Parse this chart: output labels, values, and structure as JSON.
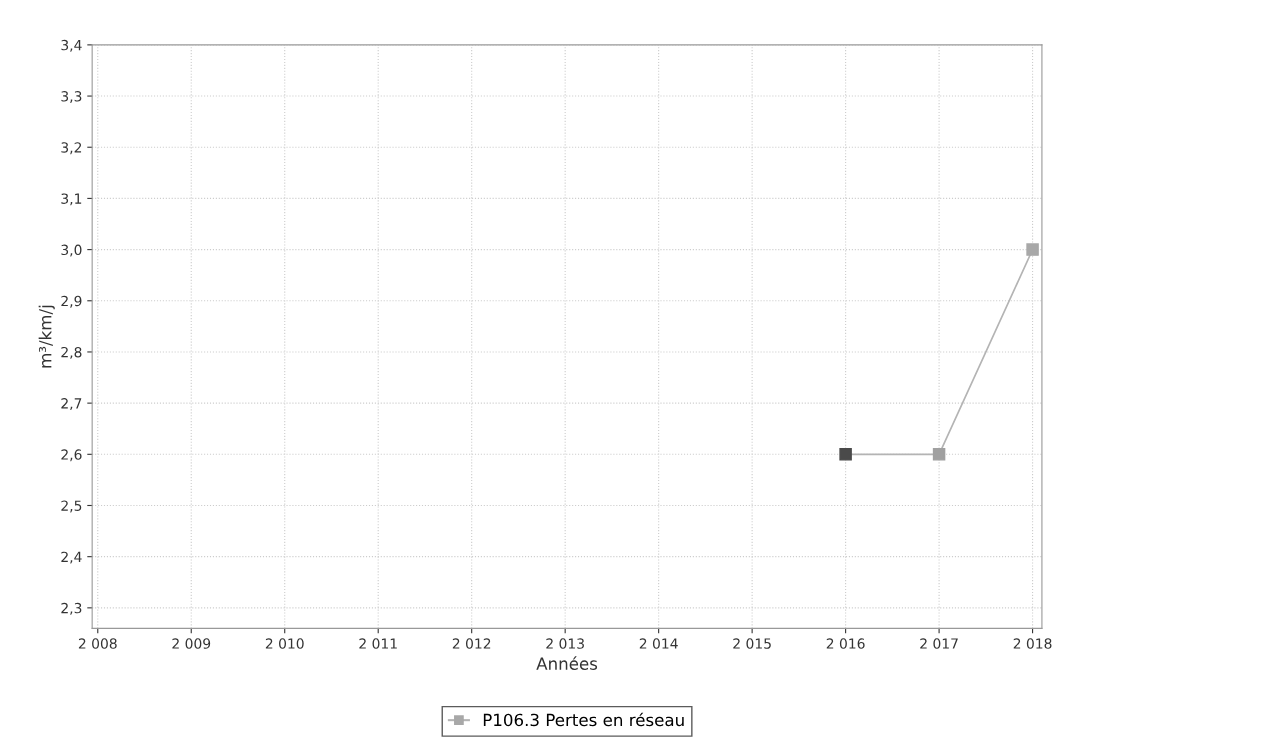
{
  "chart_data": {
    "type": "line",
    "xlabel": "Années",
    "ylabel": "m³/km/j",
    "x": [
      2016,
      2017,
      2018
    ],
    "series": [
      {
        "name": "P106.3 Pertes en réseau",
        "color": "#b4b4b4",
        "colors": [
          "#4a4a4a",
          "#a0a0a0",
          "#a8a8a8"
        ],
        "values": [
          2.6,
          2.6,
          3.0
        ]
      }
    ],
    "xlim": [
      2007.94,
      2018.1
    ],
    "xticks": [
      {
        "value": 2008,
        "label": "2 008"
      },
      {
        "value": 2009,
        "label": "2 009"
      },
      {
        "value": 2010,
        "label": "2 010"
      },
      {
        "value": 2011,
        "label": "2 011"
      },
      {
        "value": 2012,
        "label": "2 012"
      },
      {
        "value": 2013,
        "label": "2 013"
      },
      {
        "value": 2014,
        "label": "2 014"
      },
      {
        "value": 2015,
        "label": "2 015"
      },
      {
        "value": 2016,
        "label": "2 016"
      },
      {
        "value": 2017,
        "label": "2 017"
      },
      {
        "value": 2018,
        "label": "2 018"
      }
    ],
    "ylim": [
      2.26,
      3.4
    ],
    "yticks": [
      {
        "value": 2.3,
        "label": "2,3"
      },
      {
        "value": 2.4,
        "label": "2,4"
      },
      {
        "value": 2.5,
        "label": "2,5"
      },
      {
        "value": 2.6,
        "label": "2,6"
      },
      {
        "value": 2.7,
        "label": "2,7"
      },
      {
        "value": 2.8,
        "label": "2,8"
      },
      {
        "value": 2.9,
        "label": "2,9"
      },
      {
        "value": 3.0,
        "label": "3,0"
      },
      {
        "value": 3.1,
        "label": "3,1"
      },
      {
        "value": 3.2,
        "label": "3,2"
      },
      {
        "value": 3.3,
        "label": "3,3"
      },
      {
        "value": 3.4,
        "label": "3,4"
      }
    ],
    "grid": true,
    "legend": "bottom",
    "marker": "square",
    "line_style": "solid"
  }
}
